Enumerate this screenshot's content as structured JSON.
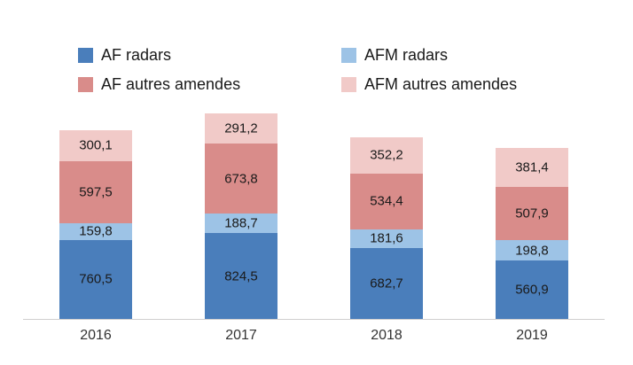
{
  "chart_data": {
    "type": "bar",
    "stacked": true,
    "title": "",
    "xlabel": "",
    "ylabel": "",
    "grid": false,
    "legend_position": "top",
    "categories": [
      "2016",
      "2017",
      "2018",
      "2019"
    ],
    "series": [
      {
        "name": "AF radars",
        "color": "#4a7ebb",
        "values": [
          760.5,
          824.5,
          682.7,
          560.9
        ],
        "labels": [
          "760,5",
          "824,5",
          "682,7",
          "560,9"
        ]
      },
      {
        "name": "AFM radars",
        "color": "#9dc3e6",
        "values": [
          159.8,
          188.7,
          181.6,
          198.8
        ],
        "labels": [
          "159,8",
          "188,7",
          "181,6",
          "198,8"
        ]
      },
      {
        "name": "AF autres amendes",
        "color": "#d98c8a",
        "values": [
          597.5,
          673.8,
          534.4,
          507.9
        ],
        "labels": [
          "597,5",
          "673,8",
          "534,4",
          "507,9"
        ]
      },
      {
        "name": "AFM autres amendes",
        "color": "#f1cac8",
        "values": [
          300.1,
          291.2,
          352.2,
          381.4
        ],
        "labels": [
          "300,1",
          "291,2",
          "352,2",
          "381,4"
        ]
      }
    ],
    "totals": [
      1817.9,
      1978.2,
      1750.9,
      1649.0
    ]
  }
}
